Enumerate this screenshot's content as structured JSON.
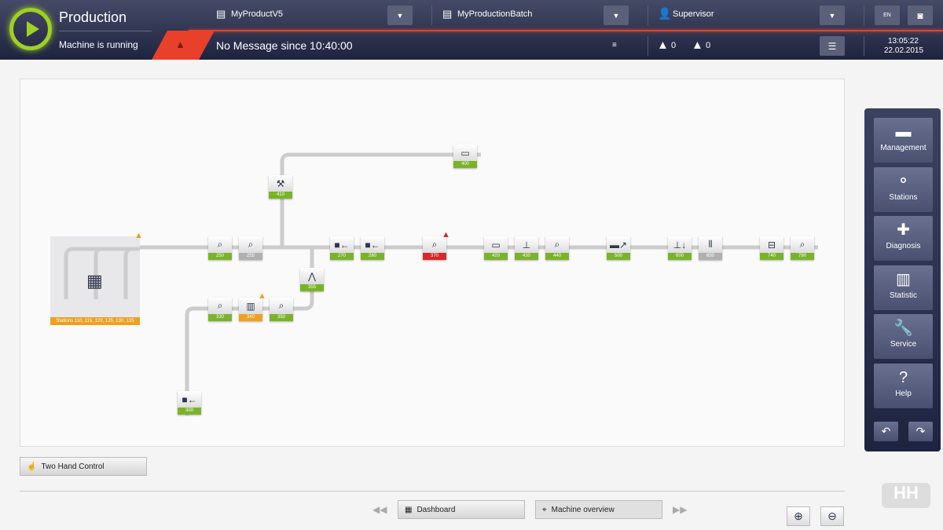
{
  "header": {
    "title": "Production",
    "status": "Machine is running",
    "product": "MyProductV5",
    "batch": "MyProductionBatch",
    "user": "Supervisor",
    "language": "EN",
    "message": "No Message since 10:40:00",
    "error_count": "0",
    "warning_count": "0",
    "time": "13:05:22",
    "date": "22.02.2015"
  },
  "colors": {
    "ok": "#7ab32a",
    "idle": "#b0b0b0",
    "error": "#d8282a",
    "warning": "#f0a020",
    "accent": "#e8402a",
    "logo": "#9fd024"
  },
  "stations": [
    {
      "label": "400",
      "status": "ok",
      "icon": "conveyor-icon"
    },
    {
      "label": "410",
      "status": "ok",
      "icon": "robot-arm-icon"
    },
    {
      "label": "250",
      "status": "ok",
      "icon": "inspection-icon"
    },
    {
      "label": "255",
      "status": "idle",
      "icon": "inspection-icon"
    },
    {
      "label": "270",
      "status": "ok",
      "icon": "feeder-icon"
    },
    {
      "label": "280",
      "status": "ok",
      "icon": "feeder-icon"
    },
    {
      "label": "370",
      "status": "error",
      "icon": "inspection-icon"
    },
    {
      "label": "420",
      "status": "ok",
      "icon": "conveyor-icon"
    },
    {
      "label": "430",
      "status": "ok",
      "icon": "press-icon"
    },
    {
      "label": "440",
      "status": "ok",
      "icon": "inspection-icon"
    },
    {
      "label": "500",
      "status": "ok",
      "icon": "transfer-icon"
    },
    {
      "label": "600",
      "status": "ok",
      "icon": "stamp-icon"
    },
    {
      "label": "650",
      "status": "idle",
      "icon": "barcode-icon"
    },
    {
      "label": "740",
      "status": "ok",
      "icon": "sorter-icon"
    },
    {
      "label": "790",
      "status": "ok",
      "icon": "inspection-icon"
    },
    {
      "label": "355",
      "status": "ok",
      "icon": "gripper-icon"
    },
    {
      "label": "330",
      "status": "ok",
      "icon": "inspection-icon"
    },
    {
      "label": "340",
      "status": "warning",
      "icon": "magazine-icon"
    },
    {
      "label": "350",
      "status": "ok",
      "icon": "inspection-icon"
    },
    {
      "label": "300",
      "status": "ok",
      "icon": "feeder-icon"
    }
  ],
  "group": {
    "label": "Stations 110, 115, 120, 125, 130, 135",
    "status": "warning"
  },
  "sidebar": {
    "items": [
      {
        "label": "Management",
        "icon": "folder-icon"
      },
      {
        "label": "Stations",
        "icon": "network-icon"
      },
      {
        "label": "Diagnosis",
        "icon": "first-aid-icon"
      },
      {
        "label": "Statistic",
        "icon": "bar-chart-icon"
      },
      {
        "label": "Service",
        "icon": "wrench-icon"
      },
      {
        "label": "Help",
        "icon": "question-icon"
      }
    ]
  },
  "footer": {
    "two_hand": "Two Hand Control",
    "dashboard": "Dashboard",
    "machine_overview": "Machine overview"
  }
}
